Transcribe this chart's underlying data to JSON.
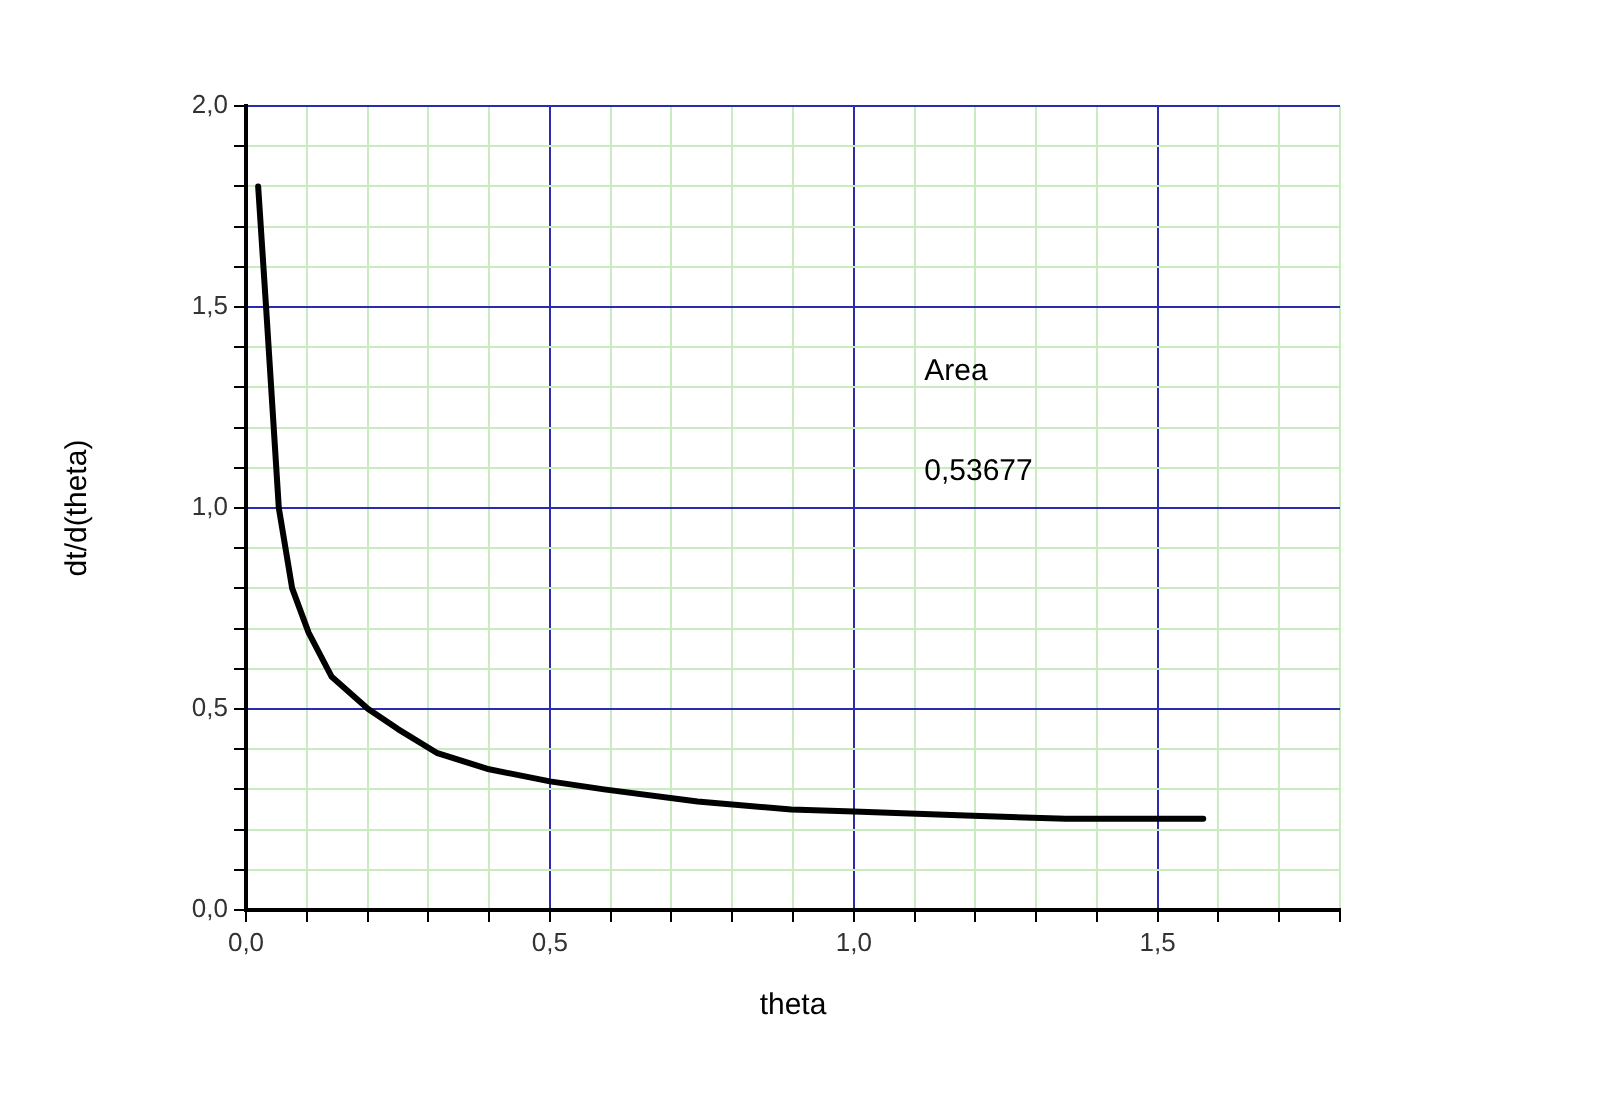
{
  "chart_data": {
    "type": "line",
    "xlabel": "theta",
    "ylabel": "dt/d(theta)",
    "x": [
      0.02,
      0.033,
      0.054,
      0.076,
      0.103,
      0.141,
      0.201,
      0.25,
      0.315,
      0.4,
      0.5,
      0.589,
      0.743,
      0.897,
      1.0,
      1.184,
      1.349,
      1.5,
      1.575
    ],
    "series": [
      {
        "color": "#000000",
        "values": [
          1.8,
          1.5,
          1.0,
          0.8,
          0.69,
          0.58,
          0.5,
          0.45,
          0.39,
          0.35,
          0.32,
          0.3,
          0.27,
          0.25,
          0.245,
          0.235,
          0.227,
          0.227,
          0.227
        ]
      }
    ],
    "xlim": [
      0,
      1.8
    ],
    "xticks": [
      {
        "value": 0,
        "label": "0,0"
      },
      {
        "value": 0.1,
        "label": null
      },
      {
        "value": 0.2,
        "label": null
      },
      {
        "value": 0.3,
        "label": null
      },
      {
        "value": 0.4,
        "label": null
      },
      {
        "value": 0.5,
        "label": "0,5"
      },
      {
        "value": 0.6,
        "label": null
      },
      {
        "value": 0.7,
        "label": null
      },
      {
        "value": 0.8,
        "label": null
      },
      {
        "value": 0.9,
        "label": null
      },
      {
        "value": 1.0,
        "label": "1,0"
      },
      {
        "value": 1.1,
        "label": null
      },
      {
        "value": 1.2,
        "label": null
      },
      {
        "value": 1.3,
        "label": null
      },
      {
        "value": 1.4,
        "label": null
      },
      {
        "value": 1.5,
        "label": "1,5"
      },
      {
        "value": 1.6,
        "label": null
      },
      {
        "value": 1.7,
        "label": null
      },
      {
        "value": 1.8,
        "label": null
      }
    ],
    "ylim": [
      0,
      2
    ],
    "yticks": [
      {
        "value": 0,
        "label": "0,0"
      },
      {
        "value": 0.1,
        "label": null
      },
      {
        "value": 0.2,
        "label": null
      },
      {
        "value": 0.3,
        "label": null
      },
      {
        "value": 0.4,
        "label": null
      },
      {
        "value": 0.5,
        "label": "0,5"
      },
      {
        "value": 0.6,
        "label": null
      },
      {
        "value": 0.7,
        "label": null
      },
      {
        "value": 0.8,
        "label": null
      },
      {
        "value": 0.9,
        "label": null
      },
      {
        "value": 1.0,
        "label": "1,0"
      },
      {
        "value": 1.1,
        "label": null
      },
      {
        "value": 1.2,
        "label": null
      },
      {
        "value": 1.3,
        "label": null
      },
      {
        "value": 1.4,
        "label": null
      },
      {
        "value": 1.5,
        "label": "1,5"
      },
      {
        "value": 1.6,
        "label": null
      },
      {
        "value": 1.7,
        "label": null
      },
      {
        "value": 1.8,
        "label": null
      },
      {
        "value": 1.9,
        "label": null
      },
      {
        "value": 2.0,
        "label": "2,0"
      }
    ],
    "grid": true,
    "legend": false,
    "marker": "none",
    "line_style": "solid",
    "annotations": [
      "Area",
      "0,53677"
    ]
  }
}
